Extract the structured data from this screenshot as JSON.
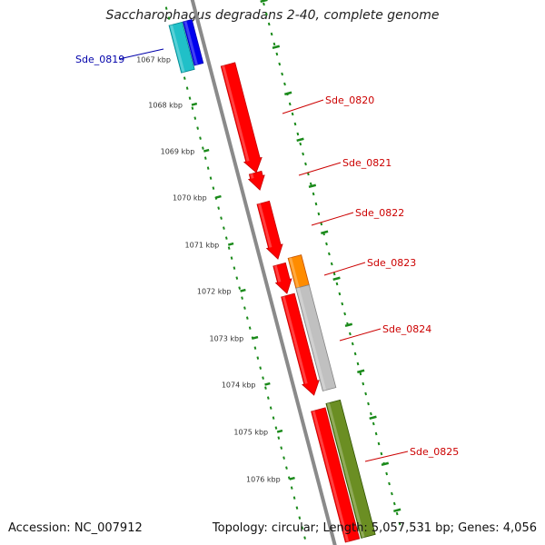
{
  "title": "Saccharophagus degradans 2-40, complete genome",
  "accession": "Accession: NC_007912",
  "topology": "Topology: circular; Length: 5,057,531 bp; Genes: 4,056",
  "axis_labels": [
    "1067 kbp",
    "1068 kbp",
    "1069 kbp",
    "1070 kbp",
    "1071 kbp",
    "1072 kbp",
    "1073 kbp",
    "1074 kbp",
    "1075 kbp",
    "1076 kbp"
  ],
  "colors": {
    "backbone": "#8a8a8a",
    "forward": "#ff0000",
    "orange": "#ff8c00",
    "grey": "#c0c0c0",
    "olive": "#6b8e23",
    "cyan": "#20c0c8",
    "blue": "#0000ee",
    "tick": "#1a8a1a",
    "label_red": "#cc0000",
    "label_blue": "#0000aa"
  },
  "genes": [
    {
      "name": "Sde_0819",
      "color_key": "blue"
    },
    {
      "name": "Sde_0820",
      "color_key": "forward"
    },
    {
      "name": "Sde_0821",
      "color_key": "forward"
    },
    {
      "name": "Sde_0822",
      "color_key": "forward"
    },
    {
      "name": "Sde_0823",
      "color_key": "forward"
    },
    {
      "name": "Sde_0824",
      "color_key": "forward"
    },
    {
      "name": "Sde_0825",
      "color_key": "forward"
    }
  ]
}
